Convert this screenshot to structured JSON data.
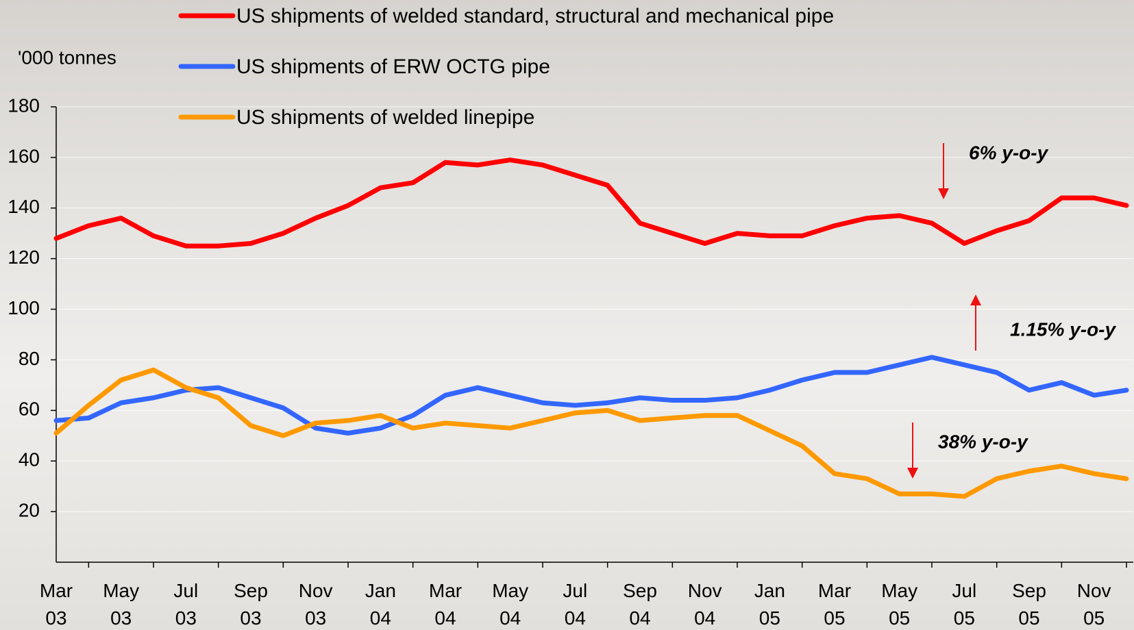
{
  "chart_data": {
    "type": "line",
    "y_label": "'000 tonnes",
    "categories": [
      "Mar\n03",
      null,
      "May\n03",
      null,
      "Jul\n03",
      null,
      "Sep\n03",
      null,
      "Nov\n03",
      null,
      "Jan\n04",
      null,
      "Mar\n04",
      null,
      "May\n04",
      null,
      "Jul\n04",
      null,
      "Sep\n04",
      null,
      "Nov\n04",
      null,
      "Jan\n05",
      null,
      "Mar\n05",
      null,
      "May\n05",
      null,
      "Jul\n05",
      null,
      "Sep\n05",
      null,
      "Nov\n05",
      null
    ],
    "series": [
      {
        "name": "US shipments of welded standard, structural and mechanical pipe",
        "color": "#ff0000",
        "values": [
          128,
          133,
          136,
          129,
          125,
          125,
          126,
          130,
          136,
          141,
          148,
          150,
          158,
          157,
          159,
          157,
          153,
          149,
          134,
          130,
          126,
          130,
          129,
          129,
          133,
          136,
          137,
          134,
          126,
          131,
          135,
          144,
          144,
          141
        ]
      },
      {
        "name": "US shipments of ERW OCTG pipe",
        "color": "#3366ff",
        "values": [
          56,
          57,
          63,
          65,
          68,
          69,
          65,
          61,
          53,
          51,
          53,
          58,
          66,
          69,
          66,
          63,
          62,
          63,
          65,
          64,
          64,
          65,
          68,
          72,
          75,
          75,
          78,
          81,
          78,
          75,
          68,
          71,
          66,
          68
        ]
      },
      {
        "name": "US shipments of welded linepipe",
        "color": "#ff9900",
        "values": [
          51,
          62,
          72,
          76,
          69,
          65,
          54,
          50,
          55,
          56,
          58,
          53,
          55,
          54,
          53,
          56,
          59,
          60,
          56,
          57,
          58,
          58,
          52,
          46,
          35,
          33,
          27,
          27,
          26,
          33,
          36,
          38,
          35,
          33
        ]
      }
    ],
    "annotations": [
      "6% y-o-y",
      "1.15% y-o-y",
      "38% y-o-y"
    ],
    "annotation_color": "#ee1111",
    "ylim": [
      0,
      180
    ],
    "yticks": [
      20,
      40,
      60,
      80,
      100,
      120,
      140,
      160,
      180
    ],
    "grid": true
  }
}
